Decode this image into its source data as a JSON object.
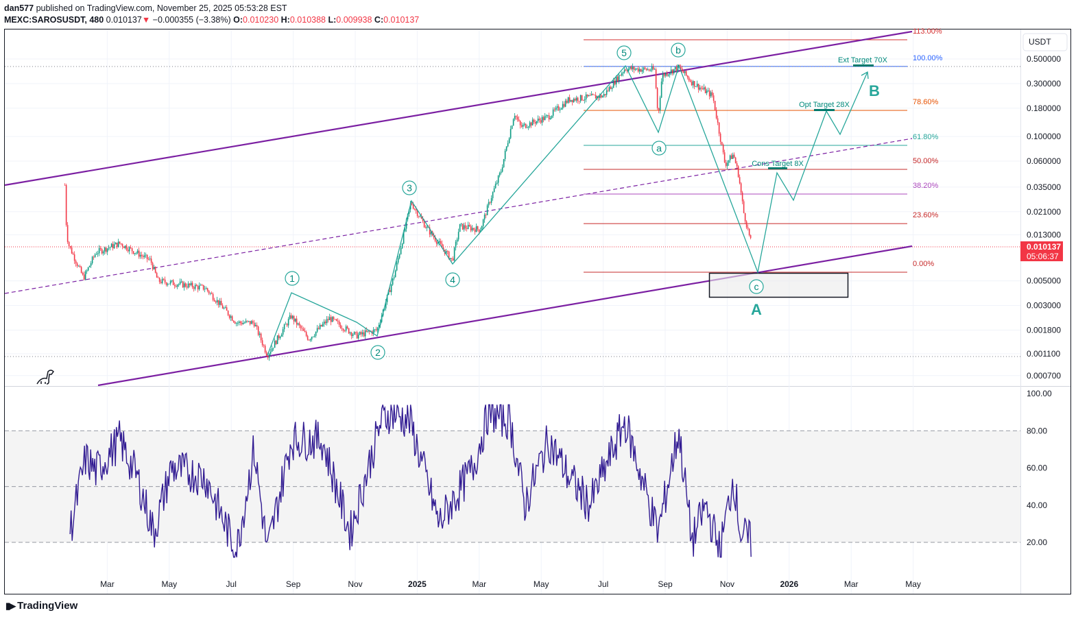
{
  "header": {
    "author": "dan577",
    "published_text": "published on TradingView.com, November 25, 2025 05:53:28 EST",
    "symbol": "MEXC:SAROSUSDT, 480",
    "last": "0.010137",
    "change_arrow": "▼",
    "change": "−0.000355 (−3.38%)",
    "o_label": "O:",
    "o": "0.010230",
    "h_label": "H:",
    "h": "0.010388",
    "l_label": "L:",
    "l": "0.009938",
    "c_label": "C:",
    "c": "0.010137"
  },
  "price_axis": {
    "currency": "USDT",
    "current_price": "0.010137",
    "countdown": "05:06:37"
  },
  "annotations": {
    "waves": [
      "1",
      "2",
      "3",
      "4",
      "5",
      "a",
      "b",
      "c"
    ],
    "big_a": "A",
    "big_b": "B",
    "ext_target": "Ext Target 70X",
    "opt_target": "Opt Target 28X",
    "cons_target": "Cons Target 8X"
  },
  "brand": {
    "name": "TradingView"
  },
  "colors": {
    "up": "#089981",
    "down": "#f23645",
    "channel": "#7b1fa2",
    "wave": "#26a69a",
    "rsi": "#311b92",
    "label_teal": "#00897b"
  },
  "chart_data": {
    "type": "line",
    "title": "MEXC:SAROSUSDT, 480",
    "yscale": "log",
    "ylabel": "USDT",
    "ylim": [
      0.00062,
      0.95
    ],
    "y_ticks": [
      "0.500000",
      "0.300000",
      "0.180000",
      "0.100000",
      "0.060000",
      "0.035000",
      "0.021000",
      "0.013000",
      "0.005000",
      "0.003000",
      "0.001800",
      "0.001100",
      "0.000700"
    ],
    "x_ticks": [
      {
        "label": "Mar",
        "date": "2024-03-01"
      },
      {
        "label": "May",
        "date": "2024-05-01"
      },
      {
        "label": "Jul",
        "date": "2024-07-01"
      },
      {
        "label": "Sep",
        "date": "2024-09-01"
      },
      {
        "label": "Nov",
        "date": "2024-11-01"
      },
      {
        "label": "2025",
        "date": "2025-01-01"
      },
      {
        "label": "Mar",
        "date": "2025-03-01"
      },
      {
        "label": "May",
        "date": "2025-05-01"
      },
      {
        "label": "Jul",
        "date": "2025-07-01"
      },
      {
        "label": "Sep",
        "date": "2025-09-01"
      },
      {
        "label": "Nov",
        "date": "2025-11-01"
      },
      {
        "label": "2026",
        "date": "2026-01-01"
      },
      {
        "label": "Mar",
        "date": "2026-03-01"
      },
      {
        "label": "May",
        "date": "2026-05-01"
      }
    ],
    "price_series": [
      {
        "date": "2024-01-20",
        "close": 0.0365
      },
      {
        "date": "2024-01-21",
        "close": 0.0179
      },
      {
        "date": "2024-01-23",
        "close": 0.0109
      },
      {
        "date": "2024-02-08",
        "close": 0.0053
      },
      {
        "date": "2024-02-20",
        "close": 0.009
      },
      {
        "date": "2024-03-13",
        "close": 0.0109
      },
      {
        "date": "2024-04-13",
        "close": 0.0076
      },
      {
        "date": "2024-04-20",
        "close": 0.005
      },
      {
        "date": "2024-06-06",
        "close": 0.0043
      },
      {
        "date": "2024-07-06",
        "close": 0.0021
      },
      {
        "date": "2024-07-23",
        "close": 0.0021
      },
      {
        "date": "2024-08-06",
        "close": 0.00107
      },
      {
        "date": "2024-08-29",
        "close": 0.0024
      },
      {
        "date": "2024-09-16",
        "close": 0.0015
      },
      {
        "date": "2024-10-06",
        "close": 0.0023
      },
      {
        "date": "2024-11-02",
        "close": 0.0016
      },
      {
        "date": "2024-11-22",
        "close": 0.0018
      },
      {
        "date": "2024-12-09",
        "close": 0.0057
      },
      {
        "date": "2024-12-25",
        "close": 0.0255
      },
      {
        "date": "2025-01-09",
        "close": 0.0155
      },
      {
        "date": "2025-02-05",
        "close": 0.0076
      },
      {
        "date": "2025-02-12",
        "close": 0.0155
      },
      {
        "date": "2025-03-02",
        "close": 0.0145
      },
      {
        "date": "2025-03-12",
        "close": 0.0274
      },
      {
        "date": "2025-03-22",
        "close": 0.0485
      },
      {
        "date": "2025-04-05",
        "close": 0.163
      },
      {
        "date": "2025-04-11",
        "close": 0.122
      },
      {
        "date": "2025-05-08",
        "close": 0.151
      },
      {
        "date": "2025-05-28",
        "close": 0.216
      },
      {
        "date": "2025-07-01",
        "close": 0.232
      },
      {
        "date": "2025-07-22",
        "close": 0.41
      },
      {
        "date": "2025-08-21",
        "close": 0.398
      },
      {
        "date": "2025-08-24",
        "close": 0.15
      },
      {
        "date": "2025-08-28",
        "close": 0.356
      },
      {
        "date": "2025-09-14",
        "close": 0.42
      },
      {
        "date": "2025-09-27",
        "close": 0.308
      },
      {
        "date": "2025-10-17",
        "close": 0.232
      },
      {
        "date": "2025-10-23",
        "close": 0.114
      },
      {
        "date": "2025-10-29",
        "close": 0.0559
      },
      {
        "date": "2025-11-07",
        "close": 0.0692
      },
      {
        "date": "2025-11-12",
        "close": 0.0451
      },
      {
        "date": "2025-11-17",
        "close": 0.0206
      },
      {
        "date": "2025-11-25",
        "close": 0.010137
      }
    ],
    "fib_levels": [
      {
        "label": "113.00%",
        "price": 0.745,
        "color": "#d32f2f"
      },
      {
        "label": "100.00%",
        "price": 0.428,
        "color": "#2962ff"
      },
      {
        "label": "78.60%",
        "price": 0.172,
        "color": "#e65100"
      },
      {
        "label": "61.80%",
        "price": 0.0832,
        "color": "#26a69a"
      },
      {
        "label": "50.00%",
        "price": 0.0506,
        "color": "#c62828"
      },
      {
        "label": "38.20%",
        "price": 0.0303,
        "color": "#ab47bc"
      },
      {
        "label": "23.60%",
        "price": 0.0164,
        "color": "#c62828"
      },
      {
        "label": "0.00%",
        "price": 0.00598,
        "color": "#c62828"
      }
    ],
    "rsi": {
      "ylim": [
        0,
        100
      ],
      "y_ticks": [
        "100.00",
        "80.00",
        "60.00",
        "40.00",
        "20.00"
      ],
      "bands": [
        80,
        50,
        20
      ],
      "series": [
        {
          "date": "2024-01-25",
          "value": 26
        },
        {
          "date": "2024-02-10",
          "value": 65
        },
        {
          "date": "2024-02-20",
          "value": 58
        },
        {
          "date": "2024-03-13",
          "value": 75
        },
        {
          "date": "2024-03-30",
          "value": 55
        },
        {
          "date": "2024-04-16",
          "value": 25
        },
        {
          "date": "2024-05-03",
          "value": 60
        },
        {
          "date": "2024-06-06",
          "value": 55
        },
        {
          "date": "2024-07-06",
          "value": 15
        },
        {
          "date": "2024-07-23",
          "value": 70
        },
        {
          "date": "2024-08-06",
          "value": 15
        },
        {
          "date": "2024-08-29",
          "value": 75
        },
        {
          "date": "2024-09-29",
          "value": 75
        },
        {
          "date": "2024-10-26",
          "value": 25
        },
        {
          "date": "2024-11-26",
          "value": 85
        },
        {
          "date": "2024-12-05",
          "value": 90
        },
        {
          "date": "2024-12-24",
          "value": 85
        },
        {
          "date": "2025-01-22",
          "value": 30
        },
        {
          "date": "2025-02-25",
          "value": 60
        },
        {
          "date": "2025-03-10",
          "value": 90
        },
        {
          "date": "2025-04-01",
          "value": 85
        },
        {
          "date": "2025-04-15",
          "value": 40
        },
        {
          "date": "2025-05-08",
          "value": 75
        },
        {
          "date": "2025-05-28",
          "value": 55
        },
        {
          "date": "2025-06-18",
          "value": 40
        },
        {
          "date": "2025-07-22",
          "value": 85
        },
        {
          "date": "2025-08-24",
          "value": 25
        },
        {
          "date": "2025-09-14",
          "value": 80
        },
        {
          "date": "2025-09-27",
          "value": 20
        },
        {
          "date": "2025-10-10",
          "value": 40
        },
        {
          "date": "2025-10-24",
          "value": 15
        },
        {
          "date": "2025-11-07",
          "value": 55
        },
        {
          "date": "2025-11-14",
          "value": 25
        },
        {
          "date": "2025-11-25",
          "value": 20
        }
      ]
    }
  }
}
